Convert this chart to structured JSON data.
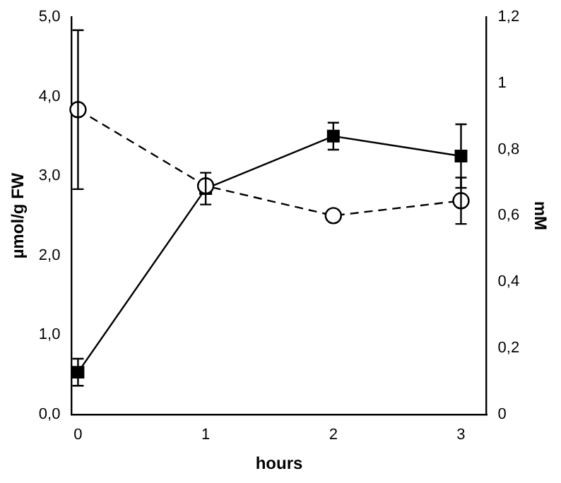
{
  "chart_data": {
    "type": "line",
    "xlabel": "hours",
    "ylabel": "µmol/g FW",
    "y2label": "mM",
    "x": [
      0,
      1,
      2,
      3
    ],
    "xlim": [
      -0.05,
      3.2
    ],
    "xticks": [
      0,
      1,
      2,
      3
    ],
    "ylim": [
      0,
      5
    ],
    "yticks": [
      {
        "value": 0,
        "label": "0,0"
      },
      {
        "value": 1,
        "label": "1,0"
      },
      {
        "value": 2,
        "label": "2,0"
      },
      {
        "value": 3,
        "label": "3,0"
      },
      {
        "value": 4,
        "label": "4,0"
      },
      {
        "value": 5,
        "label": "5,0"
      }
    ],
    "y2lim": [
      0,
      1.2
    ],
    "y2ticks": [
      0,
      {
        "value": 0.2,
        "label": "0,2"
      },
      {
        "value": 0.4,
        "label": "0,4"
      },
      {
        "value": 0.6,
        "label": "0,6"
      },
      {
        "value": 0.8,
        "label": "0,8"
      },
      1,
      {
        "value": 1.2,
        "label": "1,2"
      }
    ],
    "series": [
      {
        "color": "#000000",
        "marker": "square",
        "line_style": "solid",
        "values": [
          0.53,
          2.84,
          3.5,
          3.25
        ],
        "errors": [
          0.17,
          0.2,
          0.17,
          0.4
        ]
      },
      {
        "color": "#000000",
        "marker": "circle",
        "line_style": "dashed",
        "axis": "y2",
        "values": [
          0.92,
          0.69,
          0.6,
          0.645
        ],
        "errors": [
          0.24,
          null,
          null,
          0.07
        ]
      }
    ],
    "legend": false,
    "grid": false
  }
}
